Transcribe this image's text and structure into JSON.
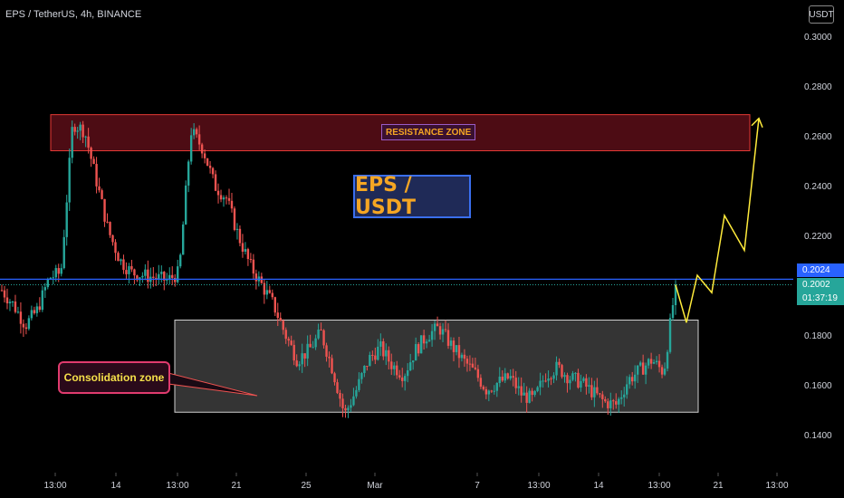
{
  "header": {
    "symbol_line": "EPS / TetherUS, 4h, BINANCE",
    "currency_badge": "USDT"
  },
  "annotations": {
    "title": "EPS / USDT",
    "resistance_label": "RESISTANCE ZONE",
    "consolidation_label": "Consolidation zone"
  },
  "price_tags": {
    "line_price": "0.2024",
    "last_price": "0.2002",
    "countdown": "01:37:19",
    "line_color": "#2962ff",
    "last_color": "#26a69a"
  },
  "colors": {
    "up": "#26a69a",
    "down": "#ef5350",
    "resistance_fill": "#5a0e18",
    "resistance_border": "#e53935",
    "consolidation_fill": "#3a3a3a",
    "projection": "#ffeb3b",
    "axis_text": "#d1d4dc"
  },
  "chart_data": {
    "type": "candlestick",
    "y_axis": {
      "ticks": [
        "0.3000",
        "0.2800",
        "0.2600",
        "0.2400",
        "0.2200",
        "0.1800",
        "0.1600",
        "0.1400"
      ],
      "ylim": [
        0.135,
        0.305
      ]
    },
    "x_axis": {
      "ticks": [
        "13:00",
        "14",
        "13:00",
        "21",
        "25",
        "Mar",
        "7",
        "13:00",
        "14",
        "13:00",
        "21",
        "13:00"
      ]
    },
    "horizontal_line": 0.2024,
    "resistance_zone": [
      0.254,
      0.2685
    ],
    "consolidation_zone": [
      0.149,
      0.186
    ],
    "close_path": [
      0.198,
      0.192,
      0.184,
      0.19,
      0.203,
      0.205,
      0.265,
      0.262,
      0.242,
      0.222,
      0.21,
      0.205,
      0.204,
      0.203,
      0.202,
      0.205,
      0.262,
      0.255,
      0.24,
      0.235,
      0.22,
      0.208,
      0.2,
      0.192,
      0.18,
      0.17,
      0.174,
      0.181,
      0.166,
      0.148,
      0.158,
      0.17,
      0.175,
      0.168,
      0.164,
      0.174,
      0.18,
      0.183,
      0.176,
      0.17,
      0.165,
      0.158,
      0.161,
      0.163,
      0.156,
      0.154,
      0.164,
      0.167,
      0.163,
      0.161,
      0.157,
      0.153,
      0.152,
      0.162,
      0.166,
      0.17,
      0.165,
      0.2002
    ],
    "projection_path": [
      0.2002,
      0.185,
      0.204,
      0.197,
      0.228,
      0.214,
      0.267
    ]
  }
}
